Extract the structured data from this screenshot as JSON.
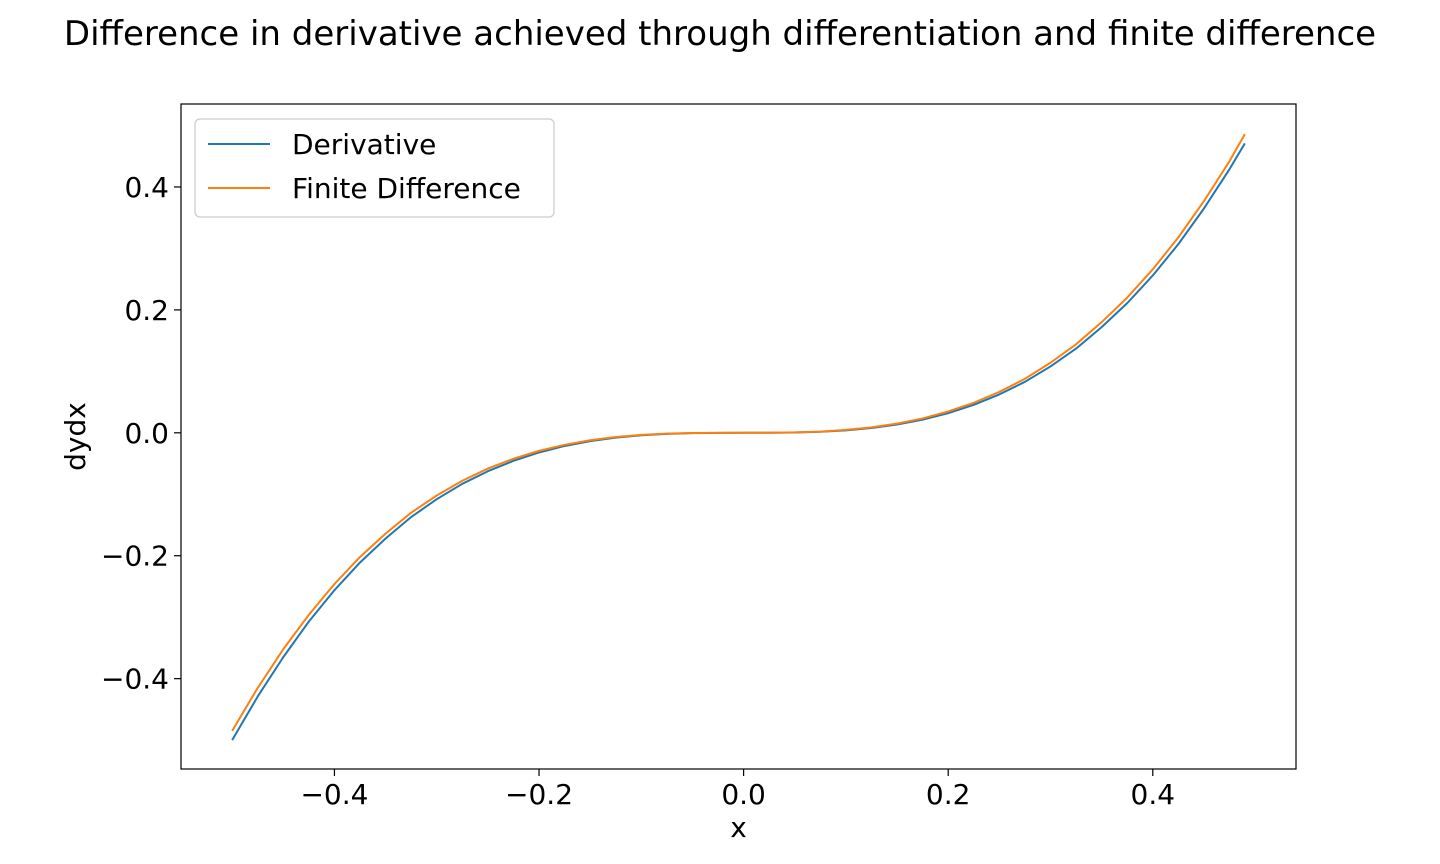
{
  "chart_data": {
    "type": "line",
    "title": "Difference in derivative achieved through differentiation and finite difference",
    "xlabel": "x",
    "ylabel": "dydx",
    "xlim": [
      -0.55,
      0.54
    ],
    "ylim": [
      -0.547,
      0.535
    ],
    "xticks": [
      -0.4,
      -0.2,
      0.0,
      0.2,
      0.4
    ],
    "xtick_labels": [
      "−0.4",
      "−0.2",
      "0.0",
      "0.2",
      "0.4"
    ],
    "yticks": [
      -0.4,
      -0.2,
      0.0,
      0.2,
      0.4
    ],
    "ytick_labels": [
      "−0.4",
      "−0.2",
      "0.0",
      "0.2",
      "0.4"
    ],
    "grid": false,
    "legend_position": "top-left",
    "x": [
      -0.5,
      -0.475,
      -0.45,
      -0.425,
      -0.4,
      -0.375,
      -0.35,
      -0.325,
      -0.3,
      -0.275,
      -0.25,
      -0.225,
      -0.2,
      -0.175,
      -0.15,
      -0.125,
      -0.1,
      -0.075,
      -0.05,
      -0.025,
      0.0,
      0.025,
      0.05,
      0.075,
      0.1,
      0.125,
      0.15,
      0.175,
      0.2,
      0.225,
      0.25,
      0.275,
      0.3,
      0.325,
      0.35,
      0.375,
      0.4,
      0.425,
      0.45,
      0.475,
      0.49
    ],
    "series": [
      {
        "name": "Derivative",
        "color": "#1f77b4",
        "values": [
          -0.5,
          -0.429,
          -0.365,
          -0.307,
          -0.256,
          -0.211,
          -0.172,
          -0.137,
          -0.108,
          -0.083,
          -0.0625,
          -0.0456,
          -0.032,
          -0.0214,
          -0.0135,
          -0.0078,
          -0.004,
          -0.0017,
          -0.0005,
          -0.0001,
          0.0,
          0.0001,
          0.0005,
          0.0017,
          0.004,
          0.0078,
          0.0135,
          0.0214,
          0.032,
          0.0456,
          0.0625,
          0.083,
          0.108,
          0.137,
          0.172,
          0.211,
          0.256,
          0.307,
          0.365,
          0.429,
          0.471
        ]
      },
      {
        "name": "Finite Difference",
        "color": "#ff7f0e",
        "values": [
          -0.485,
          -0.415,
          -0.352,
          -0.296,
          -0.246,
          -0.202,
          -0.164,
          -0.13,
          -0.102,
          -0.078,
          -0.0582,
          -0.0422,
          -0.0294,
          -0.0195,
          -0.0121,
          -0.0069,
          -0.0034,
          -0.0014,
          -0.0004,
          -0.0001,
          0.0,
          0.0002,
          0.0007,
          0.002,
          0.0047,
          0.0089,
          0.015,
          0.0234,
          0.0347,
          0.0489,
          0.0666,
          0.0879,
          0.114,
          0.144,
          0.18,
          0.22,
          0.266,
          0.318,
          0.377,
          0.442,
          0.486
        ]
      }
    ]
  }
}
